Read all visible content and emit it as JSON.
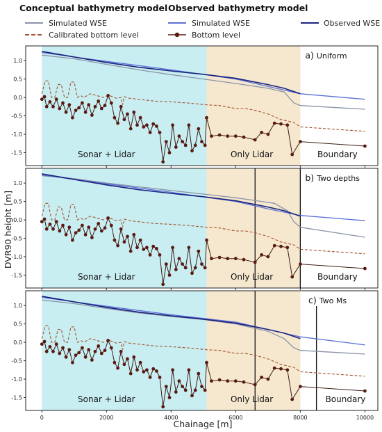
{
  "legend": {
    "conceptual_title": "Conceptual bathymetry model",
    "observed_title": "Observed bathymetry model",
    "items": [
      {
        "label": "Simulated WSE",
        "color": "#8a93a8",
        "style": "solid",
        "group": "conceptual"
      },
      {
        "label": "Calibrated bottom level",
        "color": "#a0522d",
        "style": "dashed",
        "group": "conceptual"
      },
      {
        "label": "Simulated WSE",
        "color": "#5b6fd6",
        "style": "solid",
        "group": "observed"
      },
      {
        "label": "Bottom level",
        "color": "#5a1a10",
        "style": "marker",
        "group": "observed"
      },
      {
        "label": "Observed WSE",
        "color": "#1a237e",
        "style": "solid",
        "group": "observed"
      }
    ]
  },
  "chart_data": {
    "type": "line",
    "xlabel": "Chainage [m]",
    "ylabel": "DVR90 height [m]",
    "xlim": [
      -500,
      10400
    ],
    "ylim": [
      -1.85,
      1.4
    ],
    "x_ticks": [
      0,
      2000,
      4000,
      6000,
      8000,
      10000
    ],
    "y_ticks": [
      1.0,
      0.5,
      0.0,
      -0.5,
      -1.0,
      -1.5
    ],
    "region_labels": {
      "sonar": "Sonar + Lidar",
      "lidar": "Only Lidar",
      "boundary": "Boundary"
    },
    "regions": {
      "sonar": {
        "x0": 0,
        "x1": 5100,
        "color": "#c9eef2"
      },
      "lidar": {
        "x0": 5100,
        "x1": 8000,
        "color": "#f6e8cf"
      }
    },
    "panels": [
      {
        "label": "a)",
        "title": "Uniform",
        "vlines": [],
        "show_sonar": true,
        "show_lidar": true,
        "show_boundary": true
      },
      {
        "label": "b)",
        "title": "Two depths",
        "vlines": [
          6600,
          8000
        ],
        "show_sonar": true,
        "show_lidar": true,
        "show_boundary": true
      },
      {
        "label": "c)",
        "title": "Two Ms",
        "vlines": [
          6600,
          8500
        ],
        "show_sonar": true,
        "show_lidar": true,
        "show_boundary": true
      }
    ],
    "series": {
      "bottom_level": {
        "x": [
          0,
          80,
          150,
          250,
          350,
          450,
          550,
          650,
          750,
          850,
          950,
          1050,
          1150,
          1250,
          1350,
          1450,
          1550,
          1650,
          1750,
          1850,
          1950,
          2050,
          2150,
          2250,
          2350,
          2450,
          2550,
          2650,
          2750,
          2850,
          2950,
          3050,
          3150,
          3250,
          3350,
          3450,
          3550,
          3650,
          3750,
          3850,
          3950,
          4050,
          4150,
          4250,
          4350,
          4450,
          4550,
          4650,
          4750,
          4850,
          4950,
          5050,
          5100,
          5250,
          5500,
          5750,
          6000,
          6250,
          6600,
          6800,
          7000,
          7200,
          7400,
          7600,
          7750,
          8000,
          10000
        ],
        "y": [
          -0.05,
          0.02,
          -0.25,
          -0.12,
          -0.25,
          -0.05,
          -0.3,
          -0.15,
          -0.4,
          -0.2,
          -0.55,
          -0.35,
          -0.28,
          -0.15,
          -0.4,
          -0.2,
          -0.48,
          -0.25,
          -0.1,
          -0.3,
          -0.22,
          0.05,
          -0.15,
          -0.55,
          -0.7,
          -0.25,
          -0.6,
          -0.45,
          -0.85,
          -0.4,
          -0.75,
          -0.55,
          -0.8,
          -0.75,
          -0.95,
          -0.72,
          -0.78,
          -0.95,
          -1.75,
          -1.2,
          -1.5,
          -0.75,
          -1.35,
          -1.05,
          -1.2,
          -1.3,
          -0.75,
          -1.45,
          -1.3,
          -0.85,
          -1.2,
          -1.3,
          -0.55,
          -1.05,
          -1.02,
          -1.05,
          -1.05,
          -1.08,
          -1.15,
          -0.95,
          -1.0,
          -0.7,
          -0.72,
          -0.75,
          -1.55,
          -1.2,
          -1.32
        ]
      },
      "calibrated_bottom": {
        "x": [
          0,
          100,
          200,
          300,
          400,
          500,
          600,
          700,
          800,
          900,
          1000,
          1100,
          1200,
          1300,
          1500,
          1700,
          1900,
          2100,
          2300,
          2450,
          2500,
          2550,
          2700,
          3000,
          3500,
          4000,
          4500,
          5100,
          5500,
          6000,
          6300,
          6600,
          7000,
          7400,
          7800,
          8000,
          10000
        ],
        "y": [
          0.1,
          0.45,
          0.45,
          0.0,
          0.0,
          0.35,
          0.35,
          0.0,
          0.0,
          0.42,
          0.42,
          0.0,
          0.05,
          0.0,
          0.1,
          0.05,
          0.0,
          0.05,
          -0.02,
          0.0,
          -0.2,
          0.02,
          -0.02,
          -0.05,
          -0.1,
          -0.12,
          -0.15,
          -0.2,
          -0.22,
          -0.3,
          -0.3,
          -0.35,
          -0.45,
          -0.6,
          -0.68,
          -0.8,
          -0.92
        ]
      },
      "observed_wse": {
        "x": [
          0,
          1000,
          2000,
          3000,
          4000,
          5000,
          6000,
          7000,
          7500,
          8000
        ],
        "y": [
          1.25,
          1.1,
          0.95,
          0.82,
          0.72,
          0.63,
          0.52,
          0.35,
          0.25,
          0.1
        ]
      },
      "panels_wse": [
        {
          "observed_sim": {
            "x": [
              0,
              2000,
              4000,
              6000,
              7000,
              8000,
              10000
            ],
            "y": [
              1.22,
              0.98,
              0.75,
              0.5,
              0.3,
              0.1,
              -0.05
            ]
          },
          "conceptual_sim": {
            "x": [
              0,
              1000,
              2000,
              3000,
              4000,
              5000,
              6000,
              7000,
              7500,
              7800,
              8000,
              10000
            ],
            "y": [
              1.15,
              1.05,
              0.9,
              0.75,
              0.62,
              0.5,
              0.38,
              0.25,
              0.15,
              -0.15,
              -0.22,
              -0.32
            ]
          }
        },
        {
          "observed_sim": {
            "x": [
              0,
              2000,
              4000,
              6000,
              7000,
              8000,
              10000
            ],
            "y": [
              1.22,
              0.98,
              0.75,
              0.5,
              0.3,
              0.12,
              -0.02
            ]
          },
          "conceptual_sim": {
            "x": [
              0,
              1000,
              2000,
              3000,
              4000,
              5000,
              6000,
              6800,
              7200,
              7600,
              7800,
              8000,
              10000
            ],
            "y": [
              1.2,
              1.12,
              1.0,
              0.9,
              0.8,
              0.7,
              0.6,
              0.5,
              0.45,
              0.25,
              -0.05,
              -0.2,
              -0.47
            ]
          }
        },
        {
          "observed_sim": {
            "x": [
              0,
              2000,
              4000,
              6000,
              7000,
              8000,
              10000
            ],
            "y": [
              1.22,
              0.98,
              0.75,
              0.55,
              0.35,
              0.15,
              -0.07
            ]
          },
          "conceptual_sim": {
            "x": [
              0,
              1000,
              2000,
              3000,
              4000,
              5000,
              6000,
              7000,
              7500,
              7800,
              8000,
              10000
            ],
            "y": [
              1.15,
              1.05,
              0.92,
              0.8,
              0.7,
              0.62,
              0.5,
              0.3,
              0.1,
              -0.15,
              -0.22,
              -0.32
            ]
          }
        }
      ]
    }
  }
}
